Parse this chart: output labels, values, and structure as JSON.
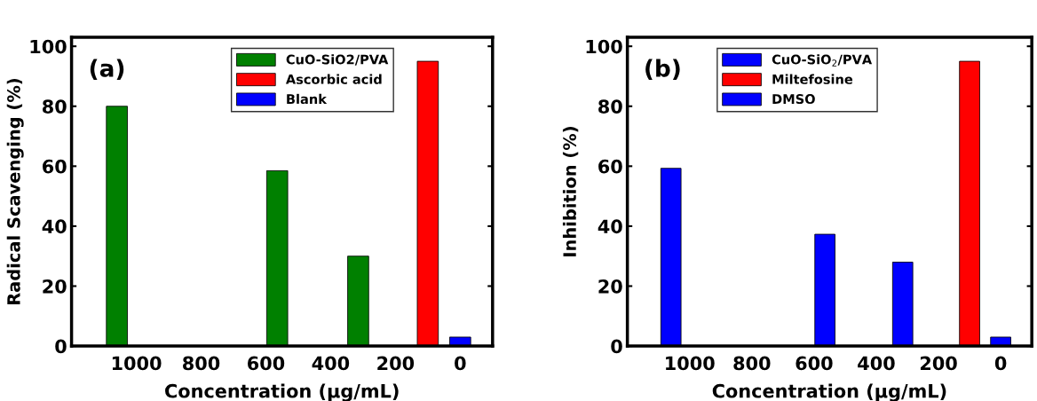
{
  "chart_data": [
    {
      "type": "bar",
      "ylabel": "Radical Scavenging (%)",
      "xlabel": "Concentration (µg/mL)",
      "annotations": [
        "(a)"
      ],
      "xlim": [
        1200,
        -100
      ],
      "xticks": [
        1000,
        800,
        600,
        400,
        200,
        0
      ],
      "ylim": [
        0,
        103
      ],
      "yticks": [
        0,
        20,
        40,
        60,
        80,
        100
      ],
      "grid": false,
      "legend": "top right",
      "series": [
        {
          "name": "CuO-SiO2/PVA",
          "color": "#008000",
          "x": [
            1060,
            565,
            315
          ],
          "values": [
            80,
            58.5,
            30
          ]
        },
        {
          "name": "Ascorbic acid",
          "color": "#ff0000",
          "x": [
            100
          ],
          "values": [
            95
          ]
        },
        {
          "name": "Blank",
          "color": "#0000ff",
          "x": [
            0
          ],
          "values": [
            3
          ]
        }
      ]
    },
    {
      "type": "bar",
      "ylabel": "Inhibition (%)",
      "xlabel": "Concentration (µg/mL)",
      "annotations": [
        "(b)"
      ],
      "xlim": [
        1200,
        -100
      ],
      "xticks": [
        1000,
        800,
        600,
        400,
        200,
        0
      ],
      "ylim": [
        0,
        103
      ],
      "yticks": [
        0,
        20,
        40,
        60,
        80,
        100
      ],
      "grid": false,
      "legend": "top",
      "series": [
        {
          "name": "CuO-SiO$_{2}$/PVA",
          "color": "#0000ff",
          "x": [
            1060,
            565,
            315
          ],
          "values": [
            59.3,
            37.3,
            28
          ]
        },
        {
          "name": "Miltefosine",
          "color": "#ff0000",
          "x": [
            100
          ],
          "values": [
            95
          ]
        },
        {
          "name": "DMSO",
          "color": "#0000ff",
          "x": [
            0
          ],
          "values": [
            3
          ]
        }
      ]
    }
  ]
}
